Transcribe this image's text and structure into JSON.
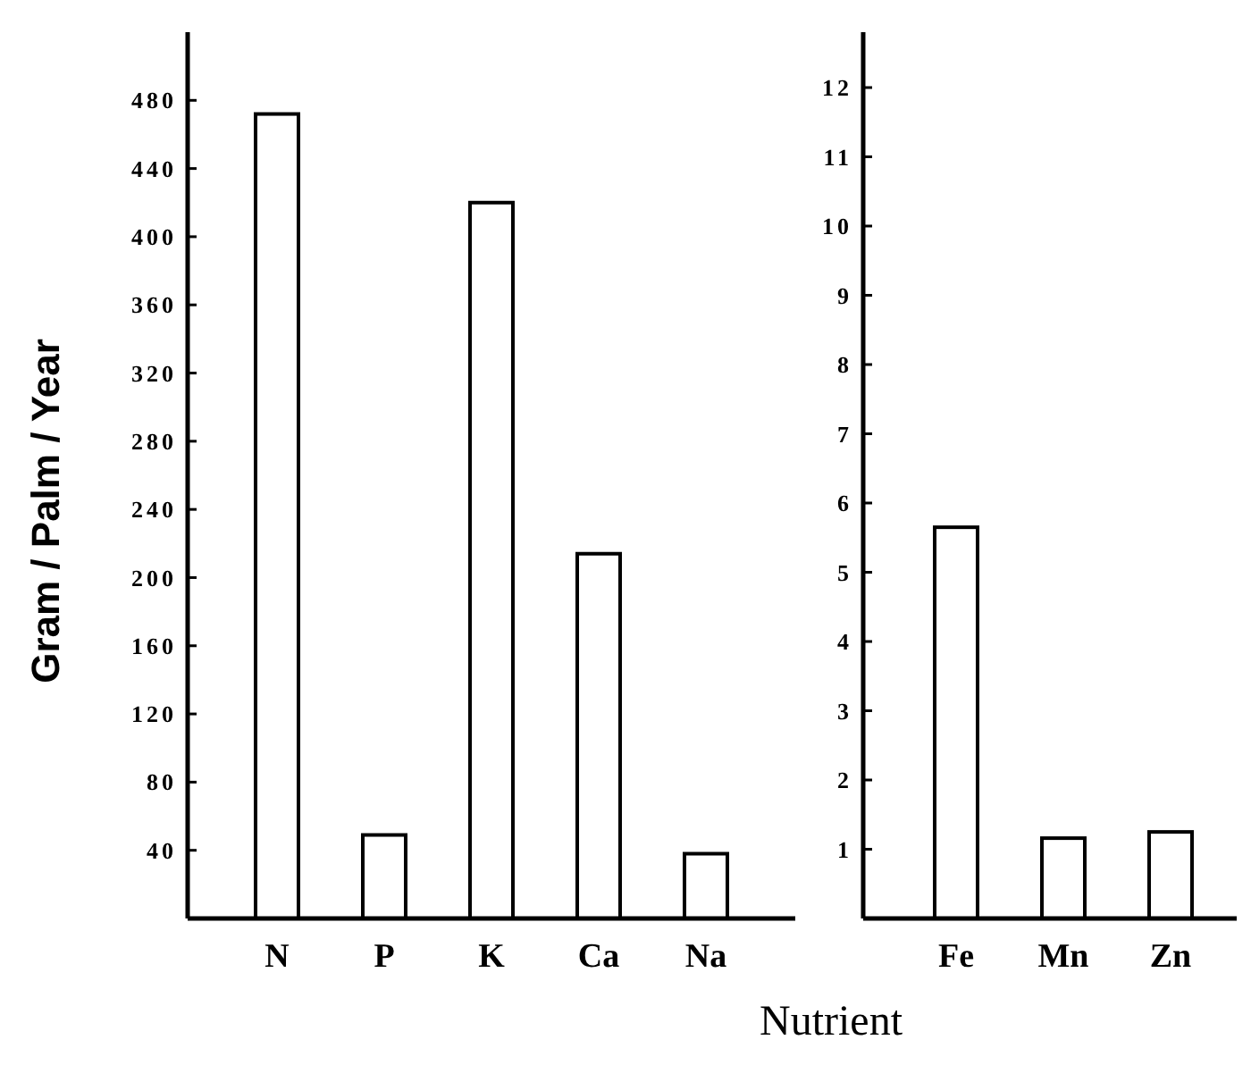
{
  "chart_data": [
    {
      "type": "bar",
      "ylabel": "Gram / Palm / Year",
      "xlabel": "Nutrient",
      "categories": [
        "N",
        "P",
        "K",
        "Ca",
        "Na"
      ],
      "values": [
        472,
        49,
        420,
        214,
        38
      ],
      "color": "#ffffff",
      "ylim": [
        0,
        520
      ],
      "yticks": [
        40,
        80,
        120,
        160,
        200,
        240,
        280,
        320,
        360,
        400,
        440,
        480
      ],
      "grid": false
    },
    {
      "type": "bar",
      "categories": [
        "Fe",
        "Mn",
        "Zn"
      ],
      "values": [
        5.65,
        1.16,
        1.25
      ],
      "color": "#ffffff",
      "ylim": [
        0,
        12.8
      ],
      "yticks": [
        1,
        2,
        3,
        4,
        5,
        6,
        7,
        8,
        9,
        10,
        11,
        12
      ],
      "grid": false
    }
  ]
}
